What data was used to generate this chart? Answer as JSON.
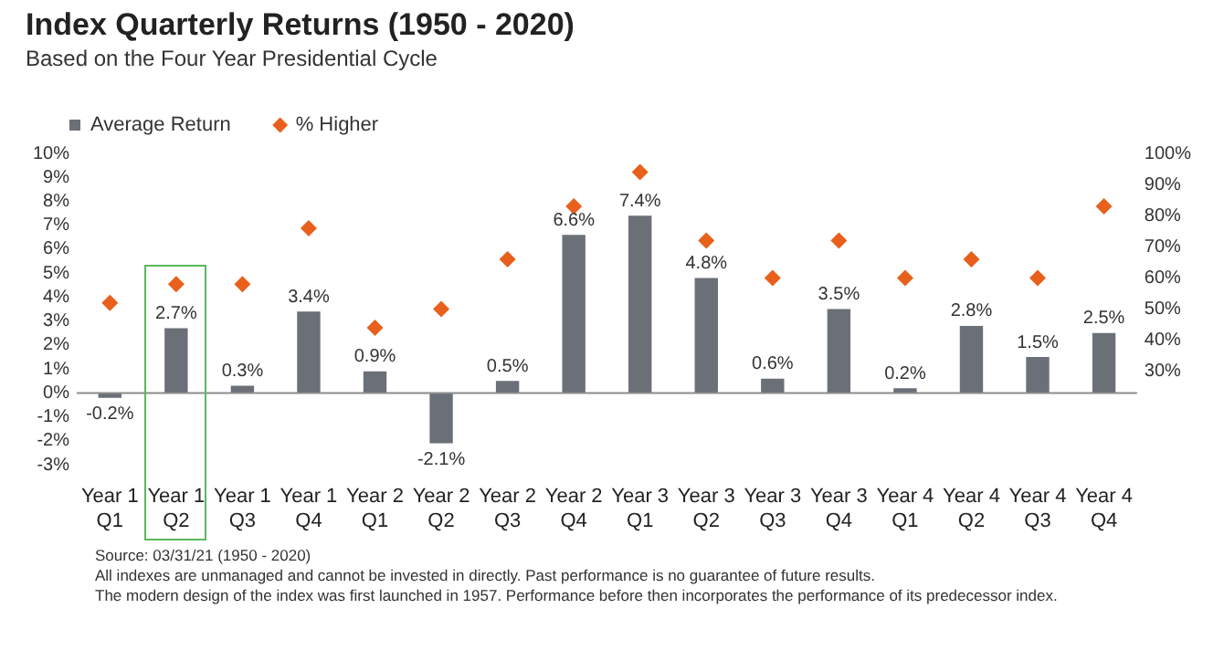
{
  "chart_data": {
    "type": "bar",
    "title": "Index Quarterly Returns (1950 - 2020)",
    "subtitle": "Based on the Four Year Presidential Cycle",
    "categories": [
      "Year 1 Q1",
      "Year 1 Q2",
      "Year 1 Q3",
      "Year 1 Q4",
      "Year 2 Q1",
      "Year 2 Q2",
      "Year 2 Q3",
      "Year 2 Q4",
      "Year 3 Q1",
      "Year 3 Q2",
      "Year 3 Q3",
      "Year 3 Q4",
      "Year 4 Q1",
      "Year 4 Q2",
      "Year 4 Q3",
      "Year 4 Q4"
    ],
    "series": [
      {
        "name": "Average Return",
        "color": "#6b6f78",
        "values": [
          -0.2,
          2.7,
          0.3,
          3.4,
          0.9,
          -2.1,
          0.5,
          6.6,
          7.4,
          4.8,
          0.6,
          3.5,
          0.2,
          2.8,
          1.5,
          2.5
        ],
        "value_labels": [
          "-0.2%",
          "2.7%",
          "0.3%",
          "3.4%",
          "0.9%",
          "-2.1%",
          "0.5%",
          "6.6%",
          "7.4%",
          "4.8%",
          "0.6%",
          "3.5%",
          "0.2%",
          "2.8%",
          "1.5%",
          "2.5%"
        ]
      },
      {
        "name": "% Higher",
        "type": "scatter",
        "axis": "y2",
        "marker": "diamond",
        "color": "#e8601c",
        "values": [
          52,
          58,
          58,
          76,
          44,
          50,
          66,
          83,
          94,
          72,
          60,
          72,
          60,
          66,
          60,
          83
        ]
      }
    ],
    "ylim": [
      -3,
      10
    ],
    "yticks": [
      {
        "value": -3,
        "label": "-3%"
      },
      {
        "value": -2,
        "label": "-2%"
      },
      {
        "value": -1,
        "label": "-1%"
      },
      {
        "value": 0,
        "label": "0%"
      },
      {
        "value": 1,
        "label": "1%"
      },
      {
        "value": 2,
        "label": "2%"
      },
      {
        "value": 3,
        "label": "3%"
      },
      {
        "value": 4,
        "label": "4%"
      },
      {
        "value": 5,
        "label": "5%"
      },
      {
        "value": 6,
        "label": "6%"
      },
      {
        "value": 7,
        "label": "7%"
      },
      {
        "value": 8,
        "label": "8%"
      },
      {
        "value": 9,
        "label": "9%"
      },
      {
        "value": 10,
        "label": "10%"
      }
    ],
    "y2lim": [
      0,
      100
    ],
    "y2ticks": [
      {
        "value": 30,
        "label": "30%"
      },
      {
        "value": 40,
        "label": "40%"
      },
      {
        "value": 50,
        "label": "50%"
      },
      {
        "value": 60,
        "label": "60%"
      },
      {
        "value": 70,
        "label": "70%"
      },
      {
        "value": 80,
        "label": "80%"
      },
      {
        "value": 90,
        "label": "90%"
      },
      {
        "value": 100,
        "label": "100%"
      }
    ],
    "ref_lines": [
      {
        "axis": "y",
        "value": 0,
        "color": "#8c8c8c"
      }
    ],
    "grid": false,
    "legend": "top",
    "annotations": [
      "Source: 03/31/21 (1950 - 2020)",
      "All indexes are unmanaged and cannot be invested in directly. Past performance is no guarantee of future results.",
      "The modern design of the index was first launched in 1957. Performance before then incorporates the performance of its predecessor index."
    ]
  }
}
